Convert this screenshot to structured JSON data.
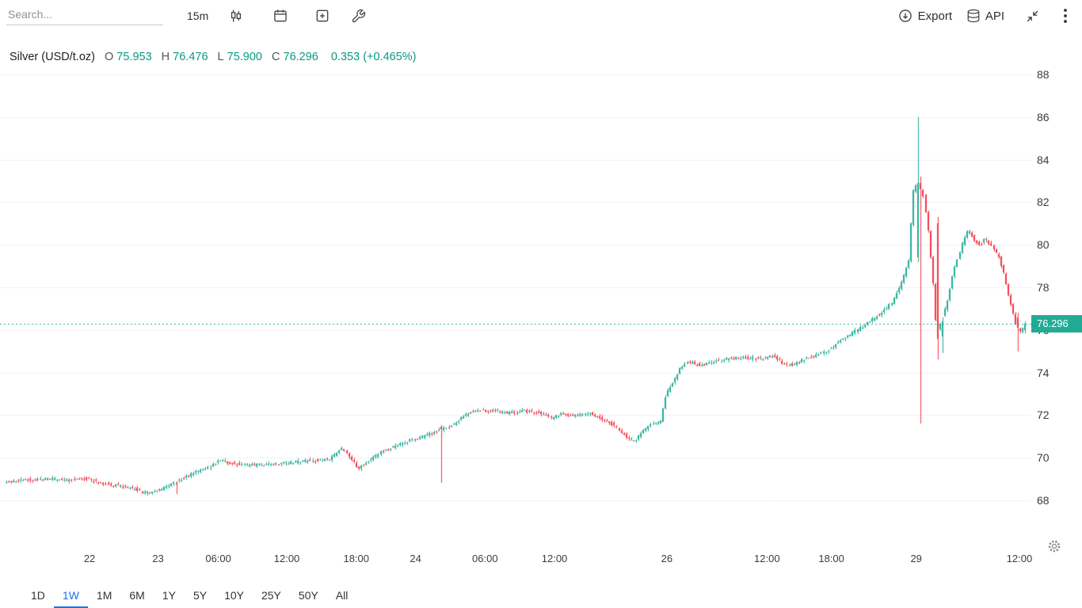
{
  "toolbar": {
    "search_placeholder": "Search...",
    "interval_label": "15m",
    "export_label": "Export",
    "api_label": "API"
  },
  "legend": {
    "symbol": "Silver (USD/t.oz)",
    "open_label": "O",
    "open_value": "75.953",
    "high_label": "H",
    "high_value": "76.476",
    "low_label": "L",
    "low_value": "75.900",
    "close_label": "C",
    "close_value": "76.296",
    "change_text": "0.353 (+0.465%)"
  },
  "price_scale": {
    "current_price_label": "76.296"
  },
  "range_tabs": {
    "items": [
      {
        "label": "1D",
        "active": false
      },
      {
        "label": "1W",
        "active": true
      },
      {
        "label": "1M",
        "active": false
      },
      {
        "label": "6M",
        "active": false
      },
      {
        "label": "1Y",
        "active": false
      },
      {
        "label": "5Y",
        "active": false
      },
      {
        "label": "10Y",
        "active": false
      },
      {
        "label": "25Y",
        "active": false
      },
      {
        "label": "50Y",
        "active": false
      },
      {
        "label": "All",
        "active": false
      }
    ]
  },
  "colors": {
    "up": "#22ab94",
    "down": "#f23645",
    "accent": "#22ab94",
    "grid": "#eef1f3",
    "active_tab": "#1a73e8",
    "green_text": "#089981"
  },
  "chart_data": {
    "type": "candlestick",
    "title": "Silver (USD/t.oz)",
    "interval": "15m",
    "ohlc_current": {
      "open": 75.953,
      "high": 76.476,
      "low": 75.9,
      "close": 76.296,
      "change": 0.353,
      "change_pct": 0.465
    },
    "y_axis": {
      "min": 68,
      "max": 88,
      "step": 2
    },
    "x_ticks": [
      {
        "label": "22",
        "t": 0.083
      },
      {
        "label": "23",
        "t": 0.15
      },
      {
        "label": "06:00",
        "t": 0.209
      },
      {
        "label": "12:00",
        "t": 0.276
      },
      {
        "label": "18:00",
        "t": 0.344
      },
      {
        "label": "24",
        "t": 0.402
      },
      {
        "label": "06:00",
        "t": 0.47
      },
      {
        "label": "12:00",
        "t": 0.538
      },
      {
        "label": "26",
        "t": 0.648
      },
      {
        "label": "12:00",
        "t": 0.746
      },
      {
        "label": "18:00",
        "t": 0.809
      },
      {
        "label": "29",
        "t": 0.892
      },
      {
        "label": "12:00",
        "t": 0.993
      }
    ],
    "candle_count": 420,
    "price_path": [
      [
        0.002,
        68.85
      ],
      [
        0.019,
        68.95
      ],
      [
        0.042,
        69.0
      ],
      [
        0.065,
        68.95
      ],
      [
        0.08,
        69.05
      ],
      [
        0.096,
        68.8
      ],
      [
        0.111,
        68.7
      ],
      [
        0.127,
        68.55
      ],
      [
        0.138,
        68.35
      ],
      [
        0.15,
        68.45
      ],
      [
        0.162,
        68.7
      ],
      [
        0.173,
        69.0
      ],
      [
        0.189,
        69.35
      ],
      [
        0.204,
        69.65
      ],
      [
        0.212,
        69.9
      ],
      [
        0.223,
        69.75
      ],
      [
        0.239,
        69.65
      ],
      [
        0.258,
        69.7
      ],
      [
        0.277,
        69.75
      ],
      [
        0.301,
        69.85
      ],
      [
        0.32,
        69.95
      ],
      [
        0.33,
        70.45
      ],
      [
        0.338,
        70.1
      ],
      [
        0.347,
        69.5
      ],
      [
        0.357,
        69.85
      ],
      [
        0.37,
        70.3
      ],
      [
        0.386,
        70.6
      ],
      [
        0.401,
        70.85
      ],
      [
        0.417,
        71.1
      ],
      [
        0.427,
        71.3
      ],
      [
        0.44,
        71.55
      ],
      [
        0.453,
        72.05
      ],
      [
        0.463,
        72.25
      ],
      [
        0.478,
        72.2
      ],
      [
        0.494,
        72.1
      ],
      [
        0.509,
        72.2
      ],
      [
        0.525,
        72.1
      ],
      [
        0.536,
        71.85
      ],
      [
        0.546,
        72.05
      ],
      [
        0.56,
        71.95
      ],
      [
        0.573,
        72.1
      ],
      [
        0.584,
        71.85
      ],
      [
        0.597,
        71.55
      ],
      [
        0.61,
        70.95
      ],
      [
        0.617,
        70.75
      ],
      [
        0.625,
        71.2
      ],
      [
        0.635,
        71.6
      ],
      [
        0.643,
        71.7
      ],
      [
        0.648,
        73.0
      ],
      [
        0.654,
        73.4
      ],
      [
        0.662,
        74.2
      ],
      [
        0.669,
        74.5
      ],
      [
        0.682,
        74.35
      ],
      [
        0.695,
        74.5
      ],
      [
        0.71,
        74.65
      ],
      [
        0.726,
        74.7
      ],
      [
        0.739,
        74.65
      ],
      [
        0.753,
        74.8
      ],
      [
        0.764,
        74.4
      ],
      [
        0.772,
        74.35
      ],
      [
        0.782,
        74.6
      ],
      [
        0.793,
        74.75
      ],
      [
        0.805,
        75.0
      ],
      [
        0.815,
        75.35
      ],
      [
        0.824,
        75.65
      ],
      [
        0.834,
        75.95
      ],
      [
        0.844,
        76.25
      ],
      [
        0.853,
        76.6
      ],
      [
        0.863,
        76.95
      ],
      [
        0.871,
        77.4
      ],
      [
        0.879,
        78.3
      ],
      [
        0.886,
        79.3
      ],
      [
        0.89,
        82.5
      ],
      [
        0.894,
        82.9
      ],
      [
        0.9,
        82.3
      ],
      [
        0.904,
        81.0
      ],
      [
        0.909,
        78.5
      ],
      [
        0.913,
        75.8
      ],
      [
        0.918,
        76.5
      ],
      [
        0.923,
        77.2
      ],
      [
        0.928,
        78.4
      ],
      [
        0.933,
        79.3
      ],
      [
        0.94,
        80.3
      ],
      [
        0.944,
        80.7
      ],
      [
        0.95,
        80.2
      ],
      [
        0.956,
        80.0
      ],
      [
        0.961,
        80.3
      ],
      [
        0.967,
        79.9
      ],
      [
        0.974,
        79.4
      ],
      [
        0.98,
        78.4
      ],
      [
        0.985,
        77.3
      ],
      [
        0.991,
        76.2
      ],
      [
        0.996,
        75.9
      ],
      [
        1.0,
        76.296
      ]
    ],
    "special_candles": [
      {
        "t": 0.167,
        "o": 68.8,
        "h": 68.9,
        "l": 68.3,
        "c": 68.75
      },
      {
        "t": 0.4255,
        "o": 71.45,
        "h": 71.55,
        "l": 68.8,
        "c": 71.35
      },
      {
        "t": 0.8925,
        "o": 79.4,
        "h": 86.0,
        "l": 79.2,
        "c": 82.9
      },
      {
        "t": 0.895,
        "o": 82.9,
        "h": 83.2,
        "l": 71.6,
        "c": 82.6
      },
      {
        "t": 0.912,
        "o": 81.0,
        "h": 81.3,
        "l": 74.6,
        "c": 75.6
      },
      {
        "t": 0.916,
        "o": 75.7,
        "h": 76.6,
        "l": 74.9,
        "c": 76.4
      },
      {
        "t": 0.99,
        "o": 76.6,
        "h": 76.8,
        "l": 75.0,
        "c": 76.1
      },
      {
        "t": 0.999,
        "o": 76.0,
        "h": 76.4,
        "l": 75.85,
        "c": 76.296
      }
    ]
  }
}
